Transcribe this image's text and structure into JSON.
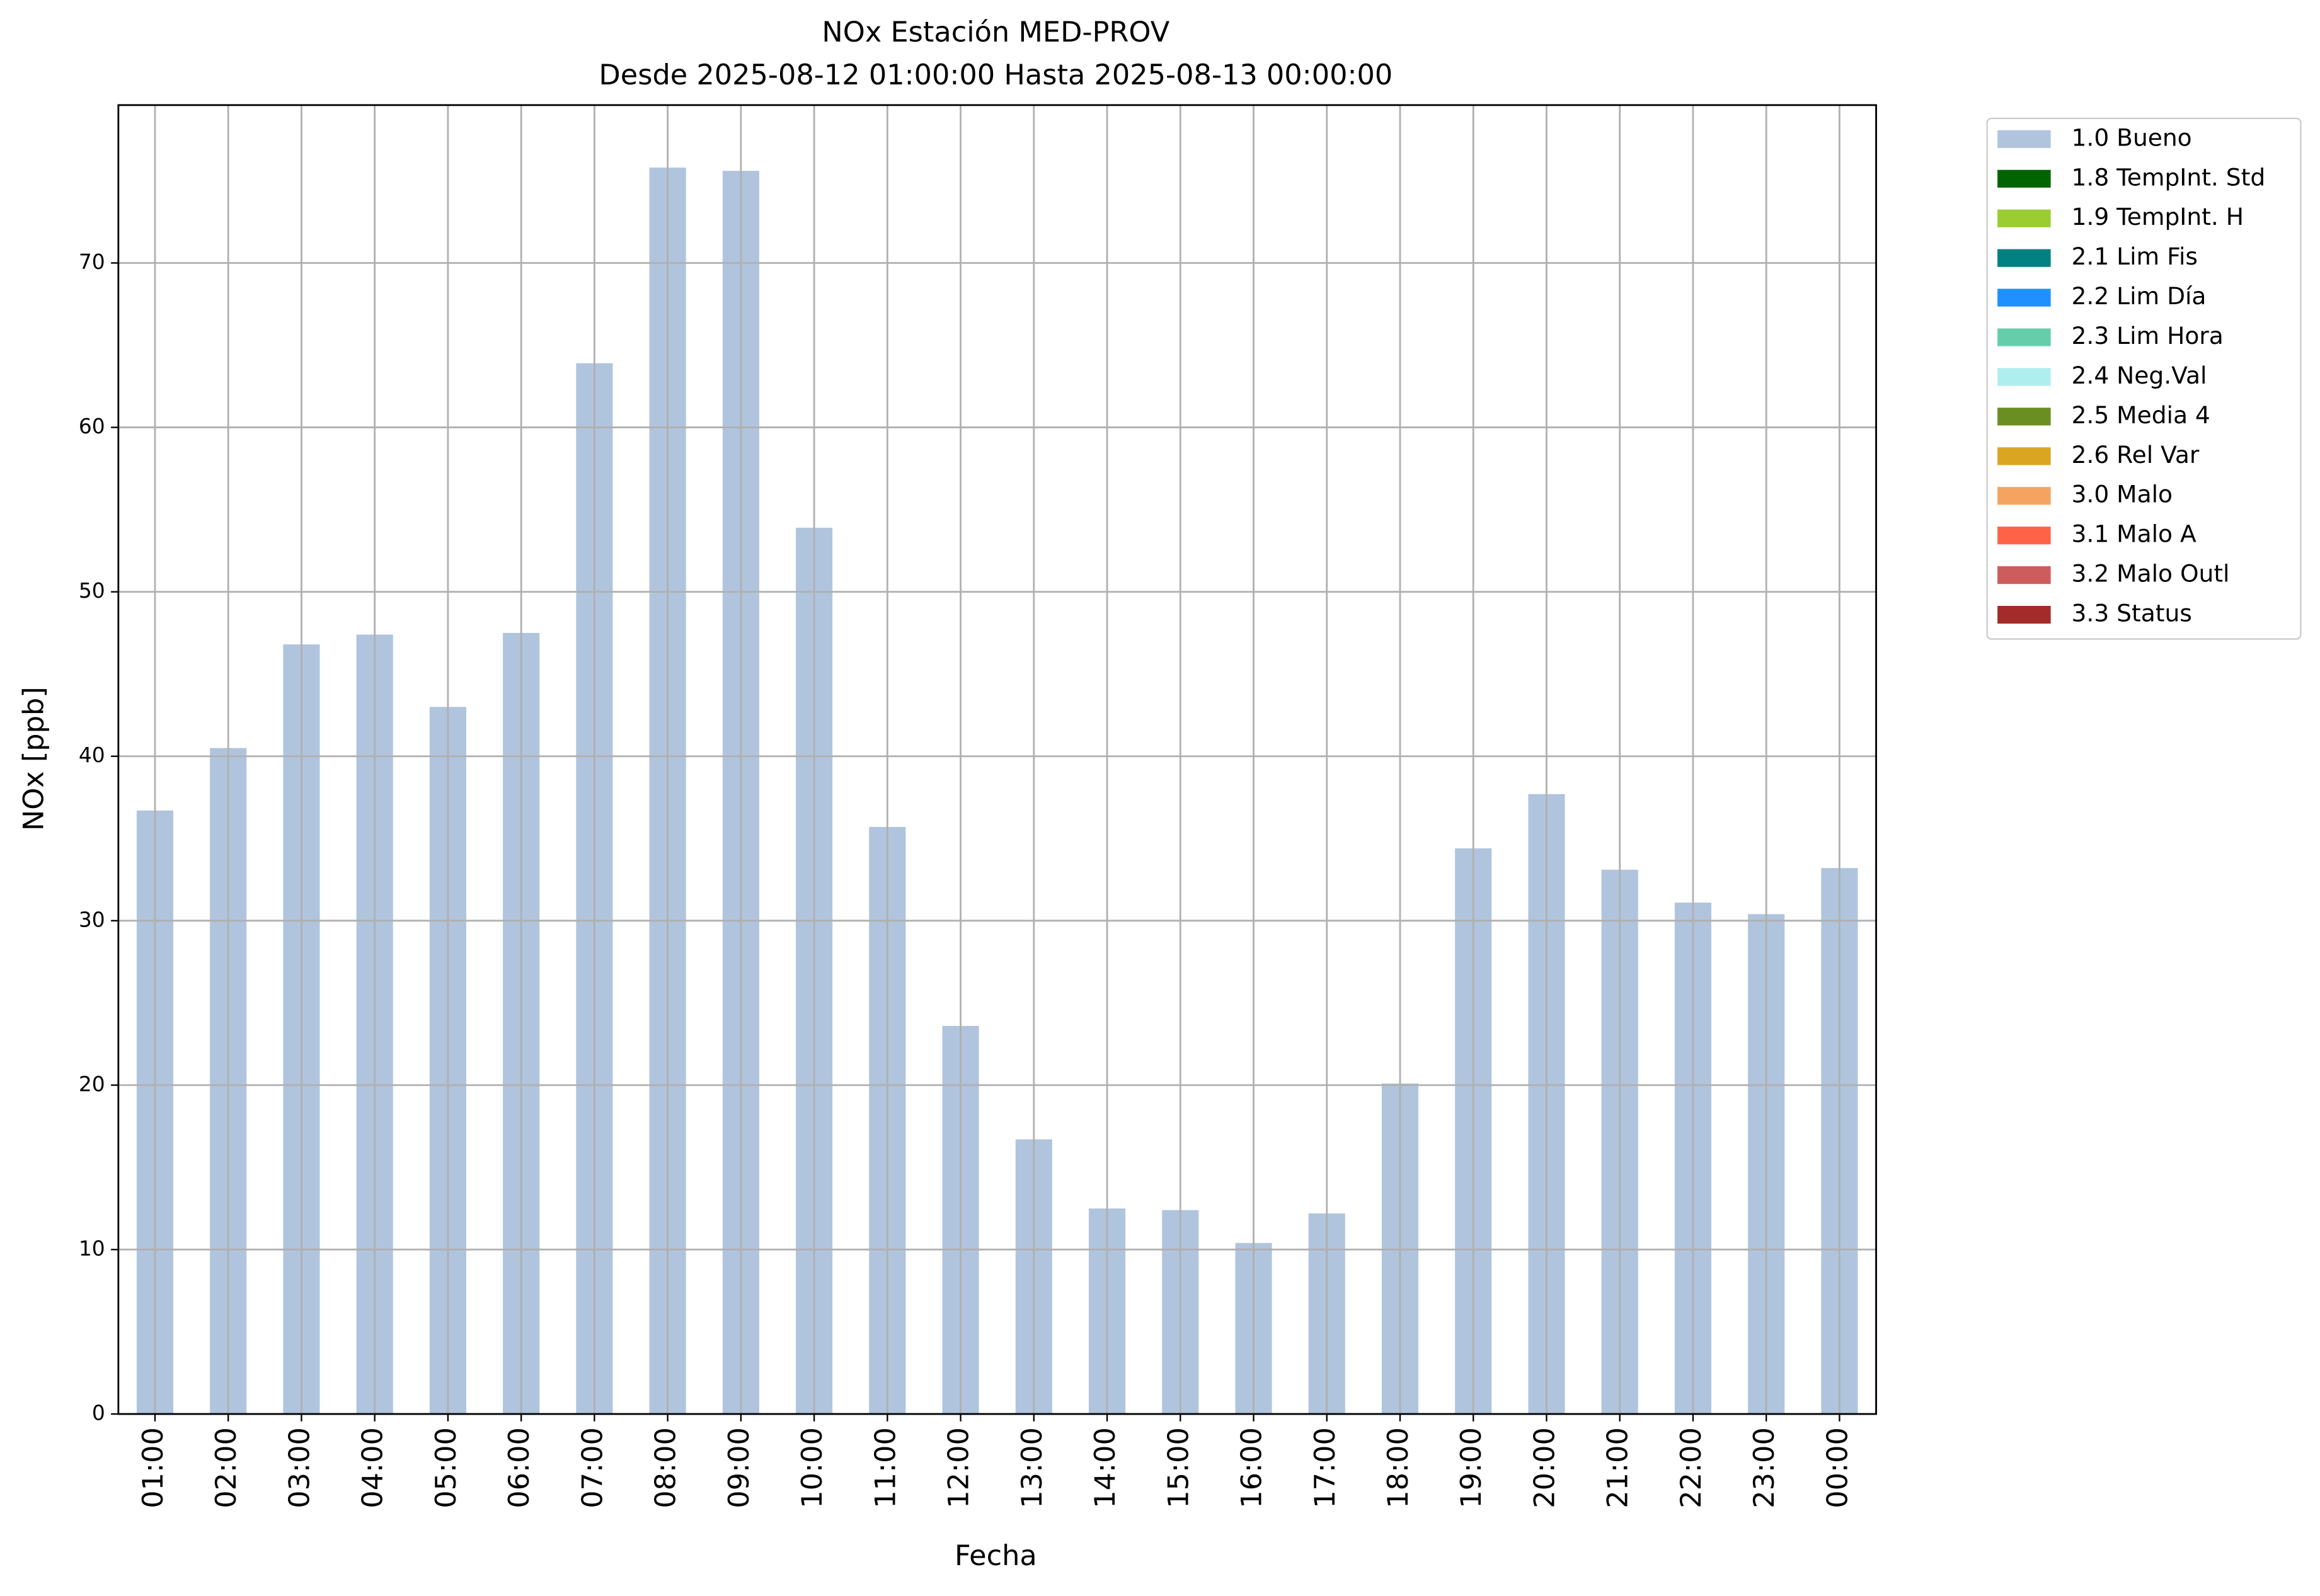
{
  "chart_data": {
    "type": "bar",
    "title": "NOx Estación MED-PROV",
    "subtitle": "Desde 2025-08-12 01:00:00 Hasta 2025-08-13 00:00:00",
    "x_label": "Fecha",
    "y_label": "NOx [ppb]",
    "categories": [
      "01:00",
      "02:00",
      "03:00",
      "04:00",
      "05:00",
      "06:00",
      "07:00",
      "08:00",
      "09:00",
      "10:00",
      "11:00",
      "12:00",
      "13:00",
      "14:00",
      "15:00",
      "16:00",
      "17:00",
      "18:00",
      "19:00",
      "20:00",
      "21:00",
      "22:00",
      "23:00",
      "00:00"
    ],
    "series": [
      {
        "name": "1.0 Bueno",
        "color": "#b0c4de",
        "values": [
          36.7,
          40.5,
          46.8,
          47.4,
          43.0,
          47.5,
          63.9,
          75.8,
          75.6,
          53.9,
          35.7,
          23.6,
          16.7,
          12.5,
          12.4,
          10.4,
          12.2,
          20.1,
          34.4,
          37.7,
          33.1,
          31.1,
          30.4,
          33.2
        ]
      },
      {
        "name": "1.8 TempInt. Std",
        "color": "#006400"
      },
      {
        "name": "1.9 TempInt. H",
        "color": "#9acd32"
      },
      {
        "name": "2.1 Lim Fis",
        "color": "#008080"
      },
      {
        "name": "2.2 Lim Día",
        "color": "#1e90ff"
      },
      {
        "name": "2.3 Lim Hora",
        "color": "#66cdaa"
      },
      {
        "name": "2.4 Neg.Val",
        "color": "#afeeee"
      },
      {
        "name": "2.5 Media 4",
        "color": "#6b8e23"
      },
      {
        "name": "2.6 Rel Var",
        "color": "#daa520"
      },
      {
        "name": "3.0 Malo",
        "color": "#f4a460"
      },
      {
        "name": "3.1 Malo A",
        "color": "#ff6347"
      },
      {
        "name": "3.2 Malo Outl",
        "color": "#cd5c5c"
      },
      {
        "name": "3.3 Status",
        "color": "#a52a2a"
      }
    ],
    "ylim": [
      0,
      79.6
    ],
    "yticks": [
      0,
      10,
      20,
      30,
      40,
      50,
      60,
      70
    ],
    "grid": true,
    "legend": "outside-upper-right"
  }
}
